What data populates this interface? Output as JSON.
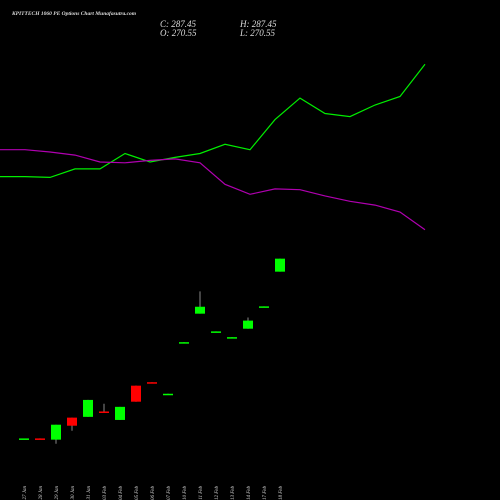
{
  "header": {
    "title": "KPITTECH 1060 PE Options Chart Munafasutra.com",
    "close": "C: 287.45",
    "high": "H: 287.45",
    "open": "O: 270.55",
    "low": "L: 270.55"
  },
  "chart_data": [
    {
      "type": "candlestick",
      "categories": [
        "27 Jan",
        "28 Jan",
        "29 Jan",
        "30 Jan",
        "31 Jan",
        "03 Feb",
        "04 Feb",
        "05 Feb",
        "06 Feb",
        "07 Feb",
        "10 Feb",
        "11 Feb",
        "12 Feb",
        "13 Feb",
        "14 Feb",
        "17 Feb",
        "18 Feb"
      ],
      "open": [
        54,
        54,
        52.4,
        81,
        82,
        89,
        78,
        122.5,
        127,
        111,
        178,
        216,
        192.5,
        185,
        196.5,
        224.5,
        270.55
      ],
      "high": [
        54,
        54,
        71.8,
        81,
        104,
        99,
        95,
        122.5,
        127,
        112,
        179,
        245,
        193,
        185.5,
        211,
        225.5,
        287.45
      ],
      "low": [
        54,
        53,
        47,
        64,
        82,
        88,
        78,
        101.7,
        126,
        111,
        178,
        216,
        192.5,
        185,
        196.5,
        224.5,
        270.55
      ],
      "close": [
        54,
        53,
        71.8,
        70.5,
        104,
        88,
        95,
        101.7,
        126,
        112,
        179,
        225,
        193,
        185.5,
        207,
        225.5,
        287.45
      ],
      "up_color": "#00ff00",
      "down_color": "#ff0000",
      "ylim": [
        0,
        600
      ]
    },
    {
      "type": "line",
      "categories": [
        null,
        null,
        null,
        null,
        null,
        null,
        null,
        null,
        null,
        null,
        null,
        null,
        null,
        null,
        null,
        null,
        null,
        null
      ],
      "series": [
        {
          "color": "#00ee00",
          "values": [
            394,
            394,
            393,
            404,
            404,
            424,
            413,
            419,
            424,
            436,
            429,
            468,
            496,
            476,
            472,
            487,
            498,
            540
          ]
        },
        {
          "color": "#b000b0",
          "values": [
            429,
            429,
            426,
            422,
            413,
            412,
            415,
            417,
            412,
            384,
            371,
            378,
            377,
            369,
            362,
            357,
            348,
            325
          ]
        }
      ],
      "ylim": [
        0,
        600
      ]
    }
  ]
}
